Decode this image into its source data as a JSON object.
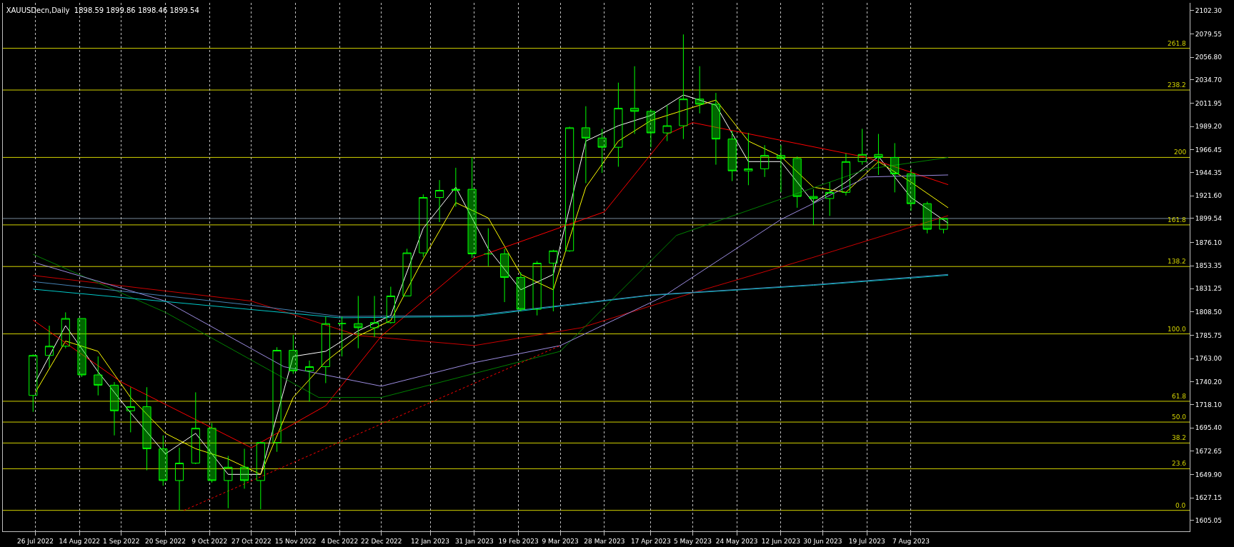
{
  "chart_data": {
    "type": "candlestick",
    "title": "XAUUSDecn,Daily  1898.59 1899.86 1898.46 1899.54",
    "color": "#00ff00",
    "x": [
      "2022-07-25",
      "2022-08-01",
      "2022-08-08",
      "2022-08-15",
      "2022-08-22",
      "2022-08-29",
      "2022-09-05",
      "2022-09-12",
      "2022-09-19",
      "2022-09-26",
      "2022-10-03",
      "2022-10-10",
      "2022-10-17",
      "2022-10-24",
      "2022-10-31",
      "2022-11-07",
      "2022-11-14",
      "2022-11-21",
      "2022-11-28",
      "2022-12-05",
      "2022-12-12",
      "2022-12-19",
      "2022-12-26",
      "2023-01-02",
      "2023-01-09",
      "2023-01-16",
      "2023-01-23",
      "2023-01-30",
      "2023-02-06",
      "2023-02-13",
      "2023-02-20",
      "2023-02-27",
      "2023-03-06",
      "2023-03-13",
      "2023-03-20",
      "2023-03-27",
      "2023-04-03",
      "2023-04-10",
      "2023-04-17",
      "2023-04-24",
      "2023-05-01",
      "2023-05-08",
      "2023-05-15",
      "2023-05-22",
      "2023-05-29",
      "2023-06-05",
      "2023-06-12",
      "2023-06-19",
      "2023-06-26",
      "2023-07-03",
      "2023-07-10",
      "2023-07-17",
      "2023-07-24",
      "2023-07-31",
      "2023-08-07",
      "2023-08-14",
      "2023-08-21"
    ],
    "ohlc": [
      [
        1727,
        1767,
        1711,
        1766
      ],
      [
        1766,
        1795,
        1754,
        1775
      ],
      [
        1775,
        1808,
        1773,
        1802
      ],
      [
        1802,
        1802,
        1745,
        1747
      ],
      [
        1747,
        1765,
        1727,
        1737
      ],
      [
        1737,
        1740,
        1688,
        1712
      ],
      [
        1712,
        1735,
        1691,
        1716
      ],
      [
        1716,
        1735,
        1654,
        1675
      ],
      [
        1675,
        1688,
        1639,
        1644
      ],
      [
        1644,
        1676,
        1615,
        1661
      ],
      [
        1661,
        1730,
        1660,
        1695
      ],
      [
        1695,
        1700,
        1642,
        1644
      ],
      [
        1644,
        1668,
        1617,
        1657
      ],
      [
        1657,
        1675,
        1636,
        1644
      ],
      [
        1644,
        1682,
        1616,
        1681
      ],
      [
        1681,
        1774,
        1672,
        1771
      ],
      [
        1771,
        1786,
        1748,
        1751
      ],
      [
        1751,
        1761,
        1721,
        1755
      ],
      [
        1755,
        1804,
        1739,
        1797
      ],
      [
        1797,
        1804,
        1765,
        1797
      ],
      [
        1797,
        1824,
        1773,
        1793
      ],
      [
        1793,
        1824,
        1784,
        1798
      ],
      [
        1798,
        1833,
        1797,
        1824
      ],
      [
        1824,
        1870,
        1824,
        1866
      ],
      [
        1866,
        1923,
        1862,
        1920
      ],
      [
        1920,
        1937,
        1896,
        1927
      ],
      [
        1927,
        1949,
        1911,
        1928
      ],
      [
        1928,
        1959,
        1861,
        1865
      ],
      [
        1865,
        1890,
        1853,
        1865
      ],
      [
        1865,
        1870,
        1818,
        1842
      ],
      [
        1842,
        1847,
        1809,
        1811
      ],
      [
        1811,
        1858,
        1805,
        1856
      ],
      [
        1856,
        1869,
        1809,
        1868
      ],
      [
        1868,
        1989,
        1867,
        1988
      ],
      [
        1988,
        2009,
        1934,
        1978
      ],
      [
        1978,
        1987,
        1944,
        1969
      ],
      [
        1969,
        2032,
        1950,
        2007
      ],
      [
        2007,
        2048,
        1982,
        2004
      ],
      [
        2004,
        2006,
        1969,
        1983
      ],
      [
        1983,
        2010,
        1975,
        1990
      ],
      [
        1990,
        2079,
        1977,
        2016
      ],
      [
        2016,
        2048,
        2002,
        2011
      ],
      [
        2011,
        2022,
        1952,
        1977
      ],
      [
        1977,
        1985,
        1936,
        1946
      ],
      [
        1946,
        1983,
        1932,
        1948
      ],
      [
        1948,
        1971,
        1940,
        1961
      ],
      [
        1961,
        1971,
        1925,
        1958
      ],
      [
        1958,
        1960,
        1910,
        1921
      ],
      [
        1921,
        1928,
        1893,
        1919
      ],
      [
        1919,
        1935,
        1902,
        1925
      ],
      [
        1925,
        1963,
        1922,
        1955
      ],
      [
        1955,
        1987,
        1952,
        1962
      ],
      [
        1962,
        1982,
        1942,
        1959
      ],
      [
        1959,
        1973,
        1925,
        1943
      ],
      [
        1943,
        1948,
        1907,
        1914
      ],
      [
        1914,
        1916,
        1885,
        1889
      ],
      [
        1889,
        1900,
        1885,
        1899.54
      ]
    ],
    "series": [
      {
        "type": "line",
        "color": "#ffffff",
        "x": [
          "2022-07-26",
          "2022-08-08",
          "2022-08-22",
          "2022-09-05",
          "2022-09-20",
          "2022-10-03",
          "2022-10-17",
          "2022-10-31",
          "2022-11-14",
          "2022-11-28",
          "2022-12-12",
          "2022-12-26",
          "2023-01-09",
          "2023-01-23",
          "2023-02-06",
          "2023-02-20",
          "2023-03-06",
          "2023-03-20",
          "2023-04-03",
          "2023-04-17",
          "2023-05-01",
          "2023-05-15",
          "2023-05-29",
          "2023-06-12",
          "2023-06-26",
          "2023-07-10",
          "2023-07-24",
          "2023-08-07",
          "2023-08-23"
        ],
        "values": [
          1740,
          1795,
          1750,
          1710,
          1670,
          1690,
          1650,
          1650,
          1765,
          1770,
          1790,
          1805,
          1890,
          1930,
          1870,
          1830,
          1845,
          1975,
          1990,
          2000,
          2020,
          2010,
          1955,
          1955,
          1915,
          1935,
          1960,
          1920,
          1895
        ]
      },
      {
        "type": "line",
        "color": "#ffff00",
        "x": [
          "2022-07-26",
          "2022-08-08",
          "2022-08-22",
          "2022-09-05",
          "2022-09-20",
          "2022-10-03",
          "2022-10-17",
          "2022-10-31",
          "2022-11-14",
          "2022-11-28",
          "2022-12-12",
          "2022-12-26",
          "2023-01-09",
          "2023-01-23",
          "2023-02-06",
          "2023-02-20",
          "2023-03-06",
          "2023-03-20",
          "2023-04-03",
          "2023-04-17",
          "2023-05-01",
          "2023-05-15",
          "2023-05-29",
          "2023-06-12",
          "2023-06-26",
          "2023-07-10",
          "2023-07-24",
          "2023-08-07",
          "2023-08-23"
        ],
        "values": [
          1730,
          1780,
          1770,
          1725,
          1690,
          1675,
          1665,
          1650,
          1725,
          1760,
          1785,
          1800,
          1860,
          1915,
          1900,
          1845,
          1830,
          1930,
          1975,
          1995,
          2005,
          2015,
          1975,
          1960,
          1930,
          1925,
          1955,
          1935,
          1910
        ]
      },
      {
        "type": "line",
        "color": "#ff0000",
        "x": [
          "2022-07-25",
          "2022-09-01",
          "2022-10-27",
          "2022-11-28",
          "2022-12-22",
          "2023-01-31",
          "2023-03-28",
          "2023-04-24",
          "2023-05-05",
          "2023-07-19",
          "2023-08-23"
        ],
        "values": [
          1800.5,
          1740,
          1676,
          1717,
          1785,
          1861,
          1906,
          1981.6,
          1993,
          1959,
          1932.5
        ]
      },
      {
        "type": "line",
        "color": "#cc0000",
        "x": [
          "2022-07-25",
          "2022-10-27",
          "2022-12-12",
          "2023-01-31",
          "2023-03-18",
          "2023-05-05",
          "2023-06-25",
          "2023-08-23"
        ],
        "values": [
          1844,
          1819,
          1785.4,
          1775.6,
          1793,
          1827,
          1861,
          1902.3
        ]
      },
      {
        "type": "line",
        "color": "#008000",
        "x": [
          "2022-07-25",
          "2022-09-20",
          "2022-11-25",
          "2022-12-22",
          "2023-03-09",
          "2023-04-28",
          "2023-07-19",
          "2023-08-23"
        ],
        "values": [
          1864.6,
          1808,
          1725,
          1725,
          1770,
          1883,
          1947.6,
          1959
        ]
      },
      {
        "type": "line",
        "color": "#9c8ce0",
        "x": [
          "2022-07-25",
          "2022-09-20",
          "2022-11-10",
          "2022-12-22",
          "2023-01-31",
          "2023-03-09",
          "2023-04-22",
          "2023-06-12",
          "2023-07-19",
          "2023-08-23"
        ],
        "values": [
          1857,
          1819,
          1755,
          1736,
          1759,
          1775.6,
          1823,
          1898.6,
          1940,
          1942
        ]
      },
      {
        "type": "line",
        "color": "#00c8c8",
        "x": [
          "2022-07-25",
          "2022-12-04",
          "2023-01-31",
          "2023-04-17",
          "2023-06-26",
          "2023-08-23"
        ],
        "values": [
          1830.6,
          1802.7,
          1804,
          1824.6,
          1834.4,
          1844.2
        ]
      },
      {
        "type": "line",
        "color": "#4682b4",
        "x": [
          "2022-07-25",
          "2022-10-27",
          "2022-12-04",
          "2023-01-31",
          "2023-04-17",
          "2023-06-26",
          "2023-08-23"
        ],
        "values": [
          1838,
          1815,
          1804,
          1805,
          1825,
          1835,
          1845
        ]
      },
      {
        "type": "line",
        "color": "#ff0000",
        "line_style": "dotted",
        "x": [
          "2022-09-28",
          "2023-03-09"
        ],
        "values": [
          1614.9,
          1775.6
        ]
      }
    ],
    "xlim": [
      "2022-07-12",
      "2023-12-05"
    ],
    "xticks": [
      {
        "value": "2022-07-26",
        "label": "26 Jul 2022"
      },
      {
        "value": "2022-08-14",
        "label": "14 Aug 2022"
      },
      {
        "value": "2022-09-01",
        "label": "1 Sep 2022"
      },
      {
        "value": "2022-09-20",
        "label": "20 Sep 2022"
      },
      {
        "value": "2022-10-09",
        "label": "9 Oct 2022"
      },
      {
        "value": "2022-10-27",
        "label": "27 Oct 2022"
      },
      {
        "value": "2022-11-15",
        "label": "15 Nov 2022"
      },
      {
        "value": "2022-12-04",
        "label": "4 Dec 2022"
      },
      {
        "value": "2022-12-22",
        "label": "22 Dec 2022"
      },
      {
        "value": "2023-01-12",
        "label": "12 Jan 2023"
      },
      {
        "value": "2023-01-31",
        "label": "31 Jan 2023"
      },
      {
        "value": "2023-02-19",
        "label": "19 Feb 2023"
      },
      {
        "value": "2023-03-09",
        "label": "9 Mar 2023"
      },
      {
        "value": "2023-03-28",
        "label": "28 Mar 2023"
      },
      {
        "value": "2023-04-17",
        "label": "17 Apr 2023"
      },
      {
        "value": "2023-05-05",
        "label": "5 May 2023"
      },
      {
        "value": "2023-05-24",
        "label": "24 May 2023"
      },
      {
        "value": "2023-06-12",
        "label": "12 Jun 2023"
      },
      {
        "value": "2023-06-30",
        "label": "30 Jun 2023"
      },
      {
        "value": "2023-07-19",
        "label": "19 Jul 2023"
      },
      {
        "value": "2023-08-07",
        "label": "7 Aug 2023"
      }
    ],
    "ylim": [
      1594.5,
      2109.8
    ],
    "yticks": [
      {
        "value": 1605.05,
        "label": "1605.05"
      },
      {
        "value": 1627.15,
        "label": "1627.15"
      },
      {
        "value": 1649.9,
        "label": "1649.90"
      },
      {
        "value": 1672.65,
        "label": "1672.65"
      },
      {
        "value": 1695.4,
        "label": "1695.40"
      },
      {
        "value": 1718.1,
        "label": "1718.10"
      },
      {
        "value": 1740.2,
        "label": "1740.20"
      },
      {
        "value": 1763.0,
        "label": "1763.00"
      },
      {
        "value": 1785.75,
        "label": "1785.75"
      },
      {
        "value": 1808.5,
        "label": "1808.50"
      },
      {
        "value": 1831.25,
        "label": "1831.25"
      },
      {
        "value": 1853.35,
        "label": "1853.35"
      },
      {
        "value": 1876.1,
        "label": "1876.10"
      },
      {
        "value": 1899.54,
        "label": "1899.54"
      },
      {
        "value": 1921.6,
        "label": "1921.60"
      },
      {
        "value": 1944.35,
        "label": "1944.35"
      },
      {
        "value": 1966.45,
        "label": "1966.45"
      },
      {
        "value": 1989.2,
        "label": "1989.20"
      },
      {
        "value": 2011.95,
        "label": "2011.95"
      },
      {
        "value": 2034.7,
        "label": "2034.70"
      },
      {
        "value": 2056.8,
        "label": "2056.80"
      },
      {
        "value": 2079.55,
        "label": "2079.55"
      },
      {
        "value": 2102.3,
        "label": "2102.30"
      }
    ],
    "ref_lines": [
      {
        "axis": "y",
        "value": 1614.9,
        "color": "#d4d400"
      },
      {
        "axis": "y",
        "value": 1655.5,
        "color": "#d4d400"
      },
      {
        "axis": "y",
        "value": 1680.6,
        "color": "#d4d400"
      },
      {
        "axis": "y",
        "value": 1701.0,
        "color": "#d4d400"
      },
      {
        "axis": "y",
        "value": 1721.3,
        "color": "#d4d400"
      },
      {
        "axis": "y",
        "value": 1787.0,
        "color": "#d4d400"
      },
      {
        "axis": "y",
        "value": 1852.7,
        "color": "#d4d400"
      },
      {
        "axis": "y",
        "value": 1893.3,
        "color": "#d4d400"
      },
      {
        "axis": "y",
        "value": 1959.1,
        "color": "#d4d400"
      },
      {
        "axis": "y",
        "value": 2024.8,
        "color": "#d4d400"
      },
      {
        "axis": "y",
        "value": 2065.5,
        "color": "#d4d400"
      },
      {
        "axis": "y",
        "value": 1899.54,
        "color": "#778899"
      }
    ],
    "annotations": [
      {
        "text": "0.0",
        "x": "2023-12-04",
        "y": 1614.9
      },
      {
        "text": "23.6",
        "x": "2023-12-04",
        "y": 1655.5
      },
      {
        "text": "38.2",
        "x": "2023-12-04",
        "y": 1680.6
      },
      {
        "text": "50.0",
        "x": "2023-12-04",
        "y": 1701.0
      },
      {
        "text": "61.8",
        "x": "2023-12-04",
        "y": 1721.3
      },
      {
        "text": "100.0",
        "x": "2023-12-04",
        "y": 1787.0
      },
      {
        "text": "138.2",
        "x": "2023-12-04",
        "y": 1852.7
      },
      {
        "text": "161.8",
        "x": "2023-12-04",
        "y": 1893.3
      },
      {
        "text": "200",
        "x": "2023-12-04",
        "y": 1959.1
      },
      {
        "text": "238.2",
        "x": "2023-12-04",
        "y": 2024.8
      },
      {
        "text": "261.8",
        "x": "2023-12-04",
        "y": 2065.5
      }
    ],
    "grid": "x"
  }
}
